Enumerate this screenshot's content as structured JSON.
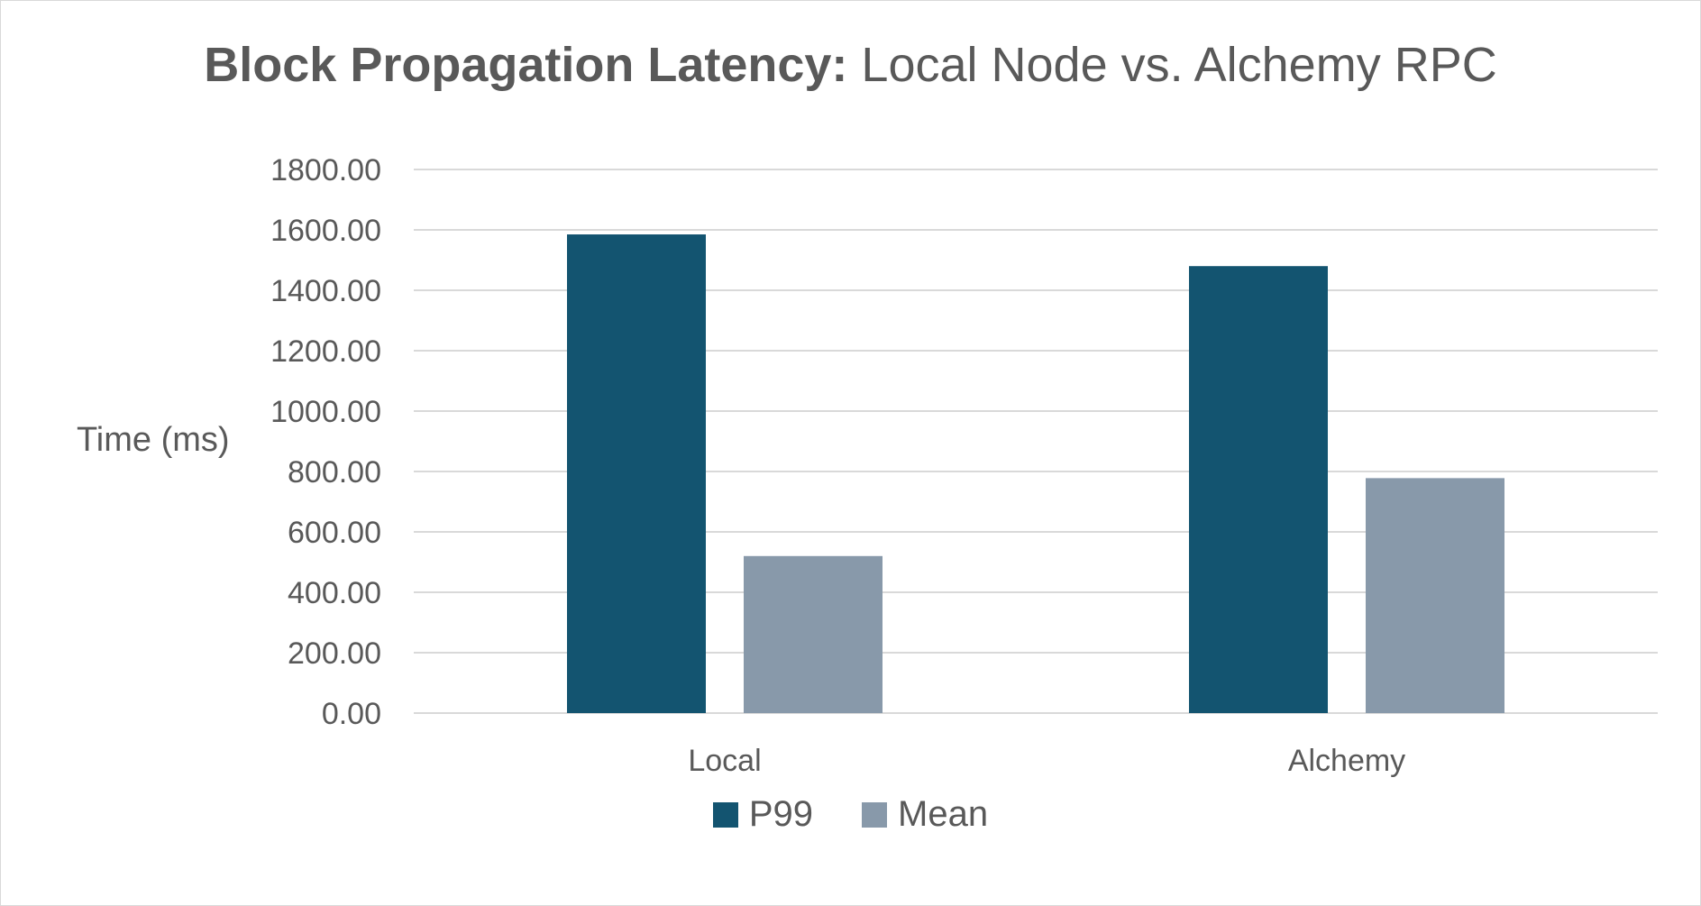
{
  "chart_data": {
    "type": "bar",
    "title_bold": "Block Propagation Latency:",
    "title_rest": " Local Node vs. Alchemy RPC",
    "ylabel": "Time (ms)",
    "xlabel": "",
    "categories": [
      "Local",
      "Alchemy"
    ],
    "series": [
      {
        "name": "P99",
        "values": [
          1585,
          1480
        ],
        "color": "#135470"
      },
      {
        "name": "Mean",
        "values": [
          520,
          778
        ],
        "color": "#8899aa"
      }
    ],
    "ylim": [
      0,
      1800
    ],
    "yticks": [
      "0.00",
      "200.00",
      "400.00",
      "600.00",
      "800.00",
      "1000.00",
      "1200.00",
      "1400.00",
      "1600.00",
      "1800.00"
    ],
    "ytick_values": [
      0,
      200,
      400,
      600,
      800,
      1000,
      1200,
      1400,
      1600,
      1800
    ],
    "grid": true,
    "legend_position": "bottom",
    "gridline_color": "#d9d9d9",
    "text_color": "#595959"
  }
}
